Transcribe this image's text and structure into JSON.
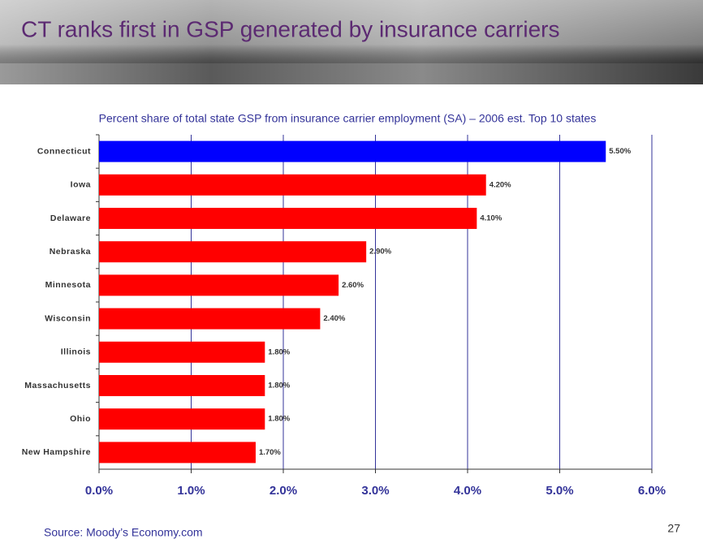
{
  "slide": {
    "title": "CT ranks first in GSP generated by insurance carriers",
    "source": "Source:  Moody’s Economy.com",
    "page_number": 27
  },
  "chart_data": {
    "type": "hbar",
    "title": "Percent share of total state GSP from insurance carrier employment (SA) – 2006 est.  Top 10 states",
    "categories": [
      "Connecticut",
      "Iowa",
      "Delaware",
      "Nebraska",
      "Minnesota",
      "Wisconsin",
      "Illinois",
      "Massachusetts",
      "Ohio",
      "New Hampshire"
    ],
    "values": [
      5.5,
      4.2,
      4.1,
      2.9,
      2.6,
      2.4,
      1.8,
      1.8,
      1.8,
      1.7
    ],
    "value_labels": [
      "5.50%",
      "4.20%",
      "4.10%",
      "2.90%",
      "2.60%",
      "2.40%",
      "1.80%",
      "1.80%",
      "1.80%",
      "1.70%"
    ],
    "colors": [
      "#0000ff",
      "#ff0000",
      "#ff0000",
      "#ff0000",
      "#ff0000",
      "#ff0000",
      "#ff0000",
      "#ff0000",
      "#ff0000",
      "#ff0000"
    ],
    "xlim": [
      0,
      6
    ],
    "xticks": [
      {
        "value": 0,
        "label": "0.0%"
      },
      {
        "value": 1,
        "label": "1.0%"
      },
      {
        "value": 2,
        "label": "2.0%"
      },
      {
        "value": 3,
        "label": "3.0%"
      },
      {
        "value": 4,
        "label": "4.0%"
      },
      {
        "value": 5,
        "label": "5.0%"
      },
      {
        "value": 6,
        "label": "6.0%"
      }
    ],
    "grid": true
  }
}
